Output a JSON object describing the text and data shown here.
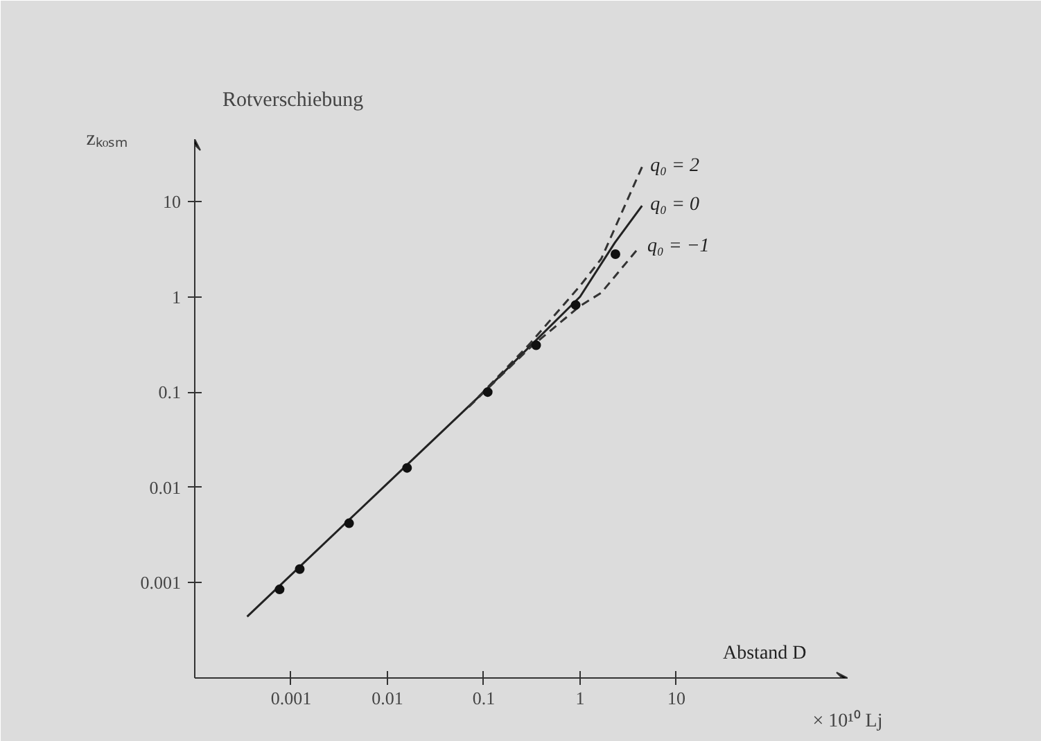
{
  "chart_data": {
    "type": "line",
    "title": "Rotverschiebung",
    "ylabel": "zₖₒₛₘ",
    "xlabel": "Abstand D",
    "annotations": [
      "× 10¹⁰ Lj"
    ],
    "log": "xy",
    "grid": false,
    "xlim": [
      0.0001,
      600
    ],
    "ylim": [
      0.0001,
      45
    ],
    "xticks": [
      0.001,
      0.01,
      0.1,
      1,
      10
    ],
    "yticks": [
      0.001,
      0.01,
      0.1,
      1,
      10
    ],
    "series": [
      {
        "name": "q₀ = 2",
        "color": "#333333",
        "line_style": "dashed",
        "x": [
          0.07,
          0.3,
          1,
          1.66,
          4.4
        ],
        "values": [
          0.07,
          0.32,
          1.3,
          2.5,
          23
        ]
      },
      {
        "name": "q₀ = 0",
        "color": "#222222",
        "line_style": "solid",
        "x": [
          0.00035,
          0.01,
          0.1,
          1,
          2.3,
          4.4
        ],
        "values": [
          0.00044,
          0.011,
          0.1,
          1,
          3.7,
          9
        ]
      },
      {
        "name": "q₀ = −1",
        "color": "#333333",
        "line_style": "dashed",
        "x": [
          0.07,
          0.3,
          1,
          1.66,
          4.1
        ],
        "values": [
          0.07,
          0.29,
          0.8,
          1.1,
          3.3
        ]
      },
      {
        "type": "scatter",
        "marker": "circle",
        "color": "#111111",
        "x": [
          0.00076,
          0.00123,
          0.004,
          0.016,
          0.11,
          0.35,
          0.9,
          2.33
        ],
        "values": [
          0.00085,
          0.00139,
          0.0042,
          0.016,
          0.1,
          0.31,
          0.82,
          2.8
        ]
      }
    ]
  }
}
